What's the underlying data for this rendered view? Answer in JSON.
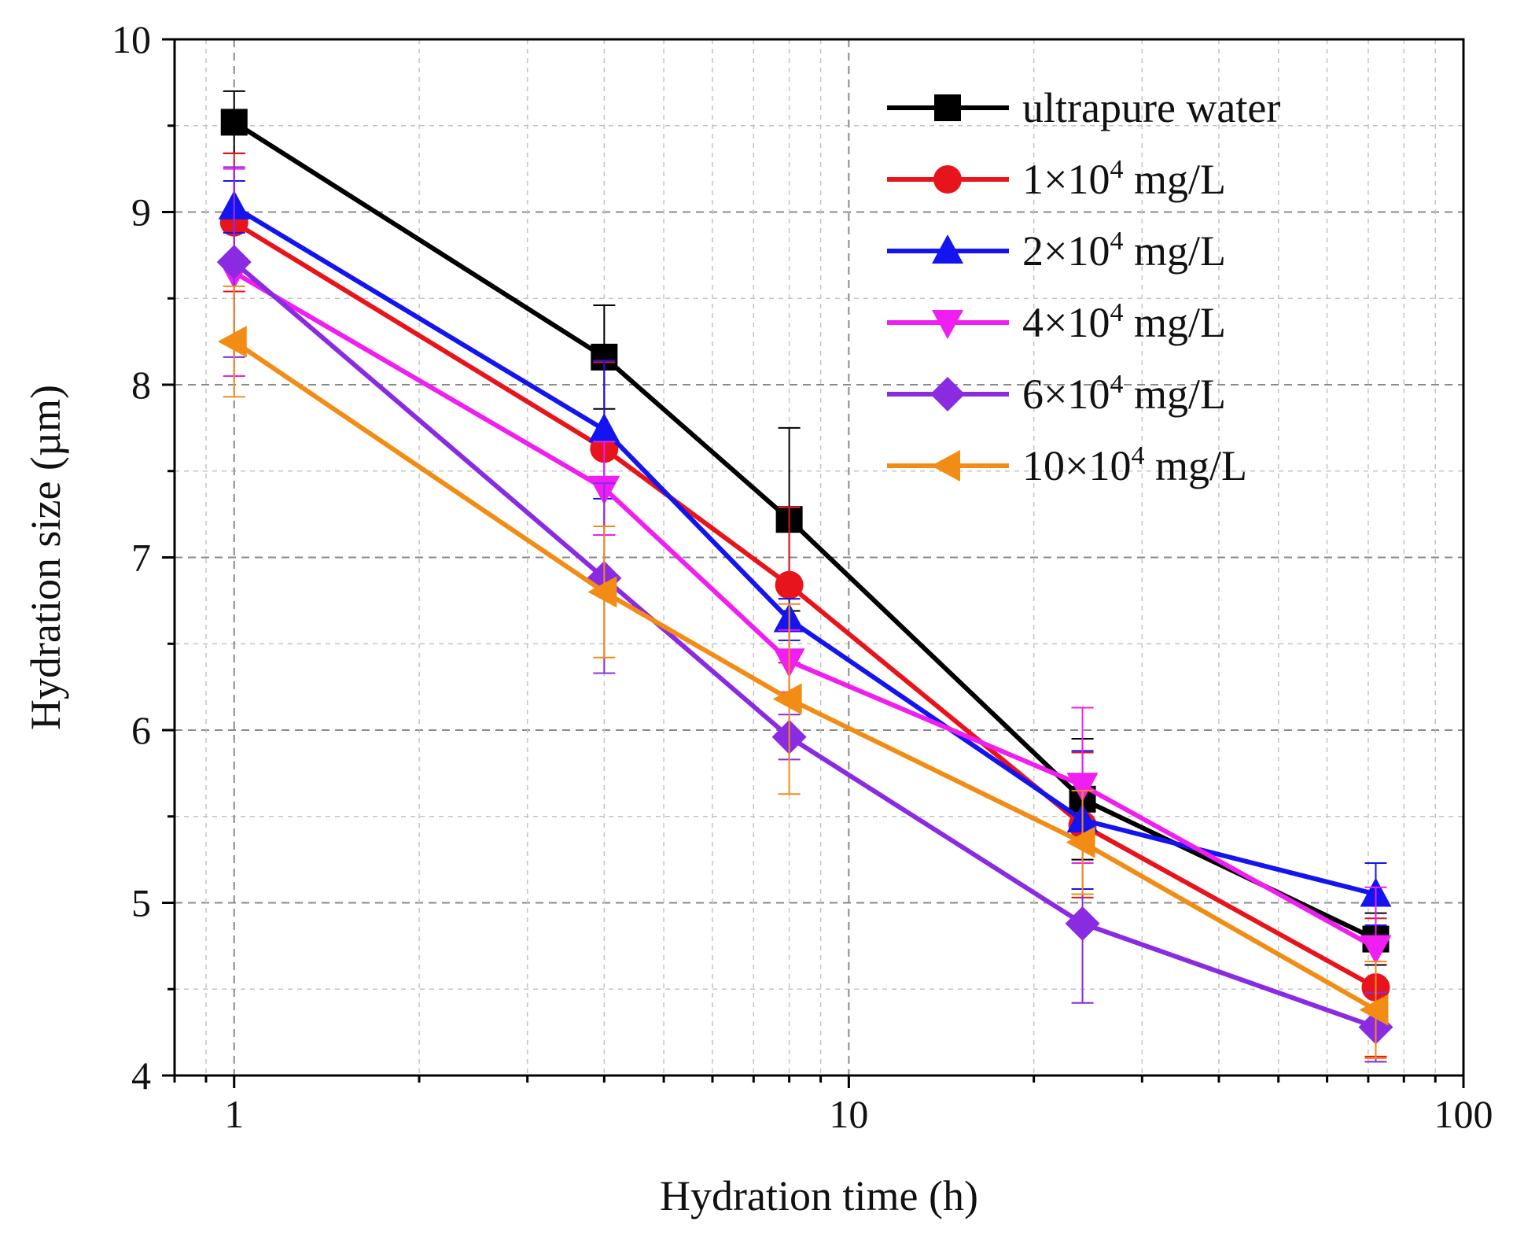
{
  "chart_data": {
    "type": "line",
    "title": "",
    "xlabel": "Hydration time (h)",
    "ylabel": "Hydration size (µm)",
    "xscale": "log",
    "xlim": [
      0.8,
      100
    ],
    "ylim": [
      4,
      10
    ],
    "x_ticks": [
      {
        "value": 1,
        "label": "1"
      },
      {
        "value": 10,
        "label": "10"
      },
      {
        "value": 100,
        "label": "100"
      }
    ],
    "y_ticks": [
      {
        "value": 4,
        "label": "4"
      },
      {
        "value": 5,
        "label": "5"
      },
      {
        "value": 6,
        "label": "6"
      },
      {
        "value": 7,
        "label": "7"
      },
      {
        "value": 8,
        "label": "8"
      },
      {
        "value": 9,
        "label": "9"
      },
      {
        "value": 10,
        "label": "10"
      }
    ],
    "grid": true,
    "legend_position": "top-right",
    "x": [
      1,
      4,
      8,
      24,
      72
    ],
    "series": [
      {
        "name": "ultrapure water",
        "legend": {
          "base": "ultrapure water",
          "exp": "",
          "unit": ""
        },
        "color": "#000000",
        "marker": "square",
        "values": [
          9.52,
          8.16,
          7.22,
          5.6,
          4.79
        ],
        "errors": [
          0.18,
          0.3,
          0.53,
          0.35,
          0.15
        ]
      },
      {
        "name": "1×10⁴ mg/L",
        "legend": {
          "base": "1×10",
          "exp": "4",
          "unit": " mg/L"
        },
        "color": "#e8141b",
        "marker": "circle",
        "values": [
          8.94,
          7.63,
          6.84,
          5.45,
          4.51
        ],
        "errors": [
          0.4,
          0.5,
          0.45,
          0.42,
          0.4
        ]
      },
      {
        "name": "2×10⁴ mg/L",
        "legend": {
          "base": "2×10",
          "exp": "4",
          "unit": " mg/L"
        },
        "color": "#1414f0",
        "marker": "triangle-up",
        "values": [
          9.03,
          7.74,
          6.64,
          5.48,
          5.05
        ],
        "errors": [
          0.15,
          0.4,
          0.12,
          0.4,
          0.18
        ]
      },
      {
        "name": "4×10⁴ mg/L",
        "legend": {
          "base": "4×10",
          "exp": "4",
          "unit": " mg/L"
        },
        "color": "#f01ef0",
        "marker": "triangle-down",
        "values": [
          8.65,
          7.4,
          6.4,
          5.68,
          4.74
        ],
        "errors": [
          0.6,
          0.27,
          0.18,
          0.45,
          0.35
        ]
      },
      {
        "name": "6×10⁴ mg/L",
        "legend": {
          "base": "6×10",
          "exp": "4",
          "unit": " mg/L"
        },
        "color": "#8a2be2",
        "marker": "diamond",
        "values": [
          8.71,
          6.88,
          5.96,
          4.88,
          4.28
        ],
        "errors": [
          0.55,
          0.55,
          0.13,
          0.46,
          0.2
        ]
      },
      {
        "name": "10×10⁴ mg/L",
        "legend": {
          "base": "10×10",
          "exp": "4",
          "unit": " mg/L"
        },
        "color": "#f28c14",
        "marker": "triangle-left",
        "values": [
          8.25,
          6.8,
          6.18,
          5.35,
          4.38
        ],
        "errors": [
          0.32,
          0.38,
          0.55,
          0.3,
          0.28
        ]
      }
    ]
  }
}
